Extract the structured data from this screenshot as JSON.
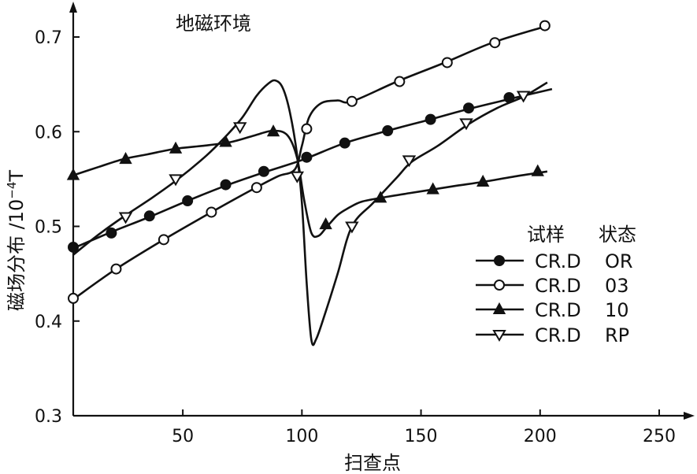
{
  "chart_data": {
    "type": "line",
    "annotation": "地磁环境",
    "xlabel": "扫查点",
    "ylabel_main": "磁场分布 /10",
    "ylabel_exp": "−4",
    "ylabel_unit": "T",
    "xlim": [
      4,
      250
    ],
    "ylim": [
      0.3,
      0.73
    ],
    "x_ticks": [
      50,
      100,
      150,
      200,
      250
    ],
    "x_tick_labels": [
      "50",
      "100",
      "150",
      "200",
      "250"
    ],
    "y_ticks": [
      0.3,
      0.4,
      0.5,
      0.6,
      0.7
    ],
    "y_tick_labels": [
      "0.3",
      "0.4",
      "0.5",
      "0.6",
      "0.7"
    ],
    "legend": {
      "header_sample": "试样",
      "header_state": "状态",
      "position": "right-center"
    },
    "series": [
      {
        "sample": "CR.D",
        "state": "OR",
        "marker": "filled-circle",
        "curve": [
          [
            4,
            0.477
          ],
          [
            20,
            0.494
          ],
          [
            36,
            0.51
          ],
          [
            52,
            0.527
          ],
          [
            68,
            0.543
          ],
          [
            84,
            0.557
          ],
          [
            100,
            0.57
          ],
          [
            118,
            0.588
          ],
          [
            136,
            0.601
          ],
          [
            154,
            0.613
          ],
          [
            170,
            0.624
          ],
          [
            188,
            0.635
          ],
          [
            205,
            0.645
          ]
        ],
        "markers": [
          [
            4,
            0.478
          ],
          [
            20,
            0.493
          ],
          [
            36,
            0.511
          ],
          [
            52,
            0.527
          ],
          [
            68,
            0.544
          ],
          [
            84,
            0.558
          ],
          [
            102,
            0.573
          ],
          [
            118,
            0.588
          ],
          [
            136,
            0.601
          ],
          [
            154,
            0.613
          ],
          [
            170,
            0.625
          ],
          [
            187,
            0.636
          ]
        ]
      },
      {
        "sample": "CR.D",
        "state": "03",
        "marker": "open-circle",
        "curve": [
          [
            4,
            0.423
          ],
          [
            22,
            0.455
          ],
          [
            42,
            0.486
          ],
          [
            62,
            0.515
          ],
          [
            80,
            0.54
          ],
          [
            90,
            0.553
          ],
          [
            97,
            0.56
          ],
          [
            100,
            0.585
          ],
          [
            103,
            0.615
          ],
          [
            108,
            0.63
          ],
          [
            115,
            0.633
          ],
          [
            121,
            0.632
          ],
          [
            140,
            0.653
          ],
          [
            160,
            0.673
          ],
          [
            180,
            0.694
          ],
          [
            202,
            0.711
          ]
        ],
        "markers": [
          [
            4,
            0.424
          ],
          [
            22,
            0.455
          ],
          [
            42,
            0.486
          ],
          [
            62,
            0.515
          ],
          [
            81,
            0.541
          ],
          [
            102,
            0.603
          ],
          [
            121,
            0.632
          ],
          [
            141,
            0.653
          ],
          [
            161,
            0.673
          ],
          [
            181,
            0.694
          ],
          [
            202,
            0.712
          ]
        ]
      },
      {
        "sample": "CR.D",
        "state": "10",
        "marker": "filled-triangle",
        "curve": [
          [
            4,
            0.554
          ],
          [
            15,
            0.563
          ],
          [
            25,
            0.571
          ],
          [
            35,
            0.576
          ],
          [
            47,
            0.582
          ],
          [
            58,
            0.585
          ],
          [
            70,
            0.589
          ],
          [
            80,
            0.596
          ],
          [
            88,
            0.601
          ],
          [
            94,
            0.596
          ],
          [
            98,
            0.572
          ],
          [
            101,
            0.527
          ],
          [
            104,
            0.493
          ],
          [
            107,
            0.49
          ],
          [
            110,
            0.498
          ],
          [
            115,
            0.512
          ],
          [
            120,
            0.52
          ],
          [
            125,
            0.526
          ],
          [
            133,
            0.53
          ],
          [
            145,
            0.535
          ],
          [
            155,
            0.539
          ],
          [
            165,
            0.543
          ],
          [
            176,
            0.547
          ],
          [
            190,
            0.553
          ],
          [
            203,
            0.558
          ]
        ],
        "markers": [
          [
            4,
            0.554
          ],
          [
            26,
            0.571
          ],
          [
            47,
            0.582
          ],
          [
            68,
            0.589
          ],
          [
            88,
            0.6
          ],
          [
            110,
            0.502
          ],
          [
            133,
            0.53
          ],
          [
            155,
            0.539
          ],
          [
            176,
            0.547
          ],
          [
            199,
            0.558
          ]
        ]
      },
      {
        "sample": "CR.D",
        "state": "RP",
        "marker": "open-triangle-down",
        "curve": [
          [
            4,
            0.47
          ],
          [
            15,
            0.492
          ],
          [
            25,
            0.51
          ],
          [
            37,
            0.53
          ],
          [
            48,
            0.55
          ],
          [
            60,
            0.575
          ],
          [
            68,
            0.595
          ],
          [
            75,
            0.615
          ],
          [
            81,
            0.638
          ],
          [
            86,
            0.651
          ],
          [
            89,
            0.654
          ],
          [
            92,
            0.646
          ],
          [
            95,
            0.62
          ],
          [
            98,
            0.575
          ],
          [
            100,
            0.525
          ],
          [
            102,
            0.44
          ],
          [
            104,
            0.38
          ],
          [
            106,
            0.381
          ],
          [
            110,
            0.41
          ],
          [
            115,
            0.45
          ],
          [
            121,
            0.5
          ],
          [
            130,
            0.525
          ],
          [
            140,
            0.552
          ],
          [
            146,
            0.568
          ],
          [
            157,
            0.585
          ],
          [
            170,
            0.608
          ],
          [
            182,
            0.625
          ],
          [
            193,
            0.637
          ],
          [
            203,
            0.652
          ]
        ],
        "markers": [
          [
            26,
            0.51
          ],
          [
            47,
            0.55
          ],
          [
            74,
            0.605
          ],
          [
            98,
            0.553
          ],
          [
            121,
            0.5
          ],
          [
            145,
            0.57
          ],
          [
            169,
            0.609
          ],
          [
            193,
            0.638
          ]
        ]
      }
    ]
  }
}
